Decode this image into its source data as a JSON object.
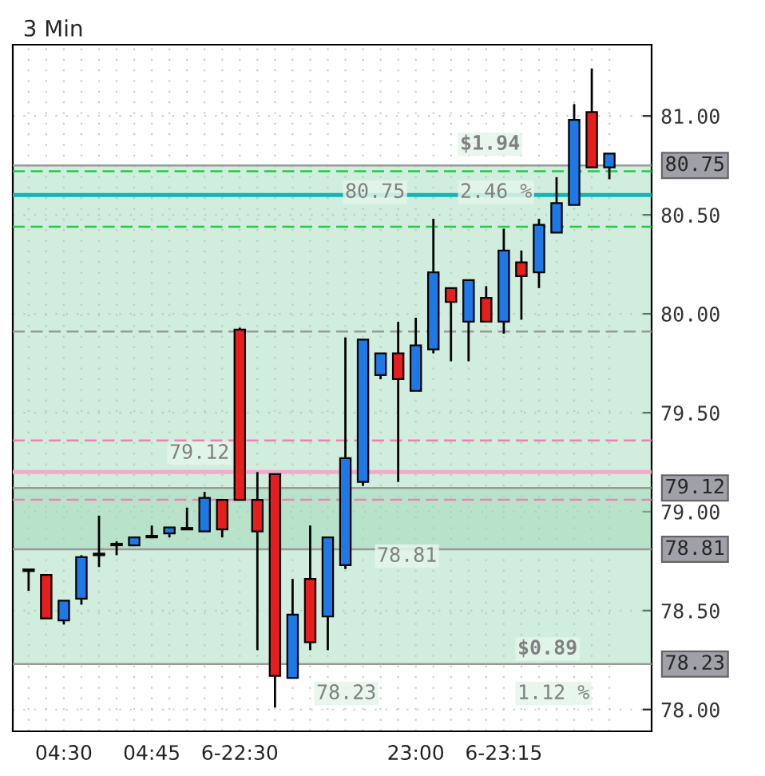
{
  "chart_data": {
    "type": "candlestick",
    "title": "3 Min",
    "categories": [
      null,
      null,
      "04:30",
      null,
      null,
      null,
      null,
      "04:45",
      null,
      null,
      null,
      null,
      "6-22:30",
      null,
      null,
      null,
      null,
      null,
      null,
      null,
      null,
      null,
      "23:00",
      null,
      null,
      null,
      null,
      "6-23:15",
      null,
      null,
      null,
      null,
      null,
      null
    ],
    "ohlc": [
      [
        78.7,
        78.7,
        78.6,
        78.7
      ],
      [
        78.68,
        78.68,
        78.46,
        78.46
      ],
      [
        78.45,
        78.55,
        78.43,
        78.55
      ],
      [
        78.56,
        78.78,
        78.53,
        78.77
      ],
      [
        78.78,
        78.98,
        78.72,
        78.78
      ],
      [
        78.83,
        78.85,
        78.78,
        78.83
      ],
      [
        78.83,
        78.87,
        78.83,
        78.87
      ],
      [
        78.87,
        78.93,
        78.87,
        78.87
      ],
      [
        78.89,
        78.92,
        78.87,
        78.92
      ],
      [
        78.91,
        79.02,
        78.91,
        78.91
      ],
      [
        78.9,
        79.1,
        78.9,
        79.07
      ],
      [
        79.06,
        79.06,
        78.87,
        78.91
      ],
      [
        79.92,
        79.93,
        79.06,
        79.06
      ],
      [
        79.06,
        79.2,
        78.3,
        78.9
      ],
      [
        79.19,
        79.19,
        78.01,
        78.17
      ],
      [
        78.16,
        78.66,
        78.16,
        78.48
      ],
      [
        78.66,
        78.93,
        78.3,
        78.34
      ],
      [
        78.47,
        78.87,
        78.3,
        78.87
      ],
      [
        78.73,
        79.88,
        78.71,
        79.27
      ],
      [
        79.15,
        79.87,
        79.13,
        79.87
      ],
      [
        79.69,
        79.8,
        79.67,
        79.8
      ],
      [
        79.8,
        79.96,
        79.15,
        79.67
      ],
      [
        79.61,
        79.98,
        79.61,
        79.84
      ],
      [
        79.82,
        80.48,
        79.8,
        80.21
      ],
      [
        80.13,
        80.13,
        79.76,
        80.06
      ],
      [
        79.96,
        80.17,
        79.76,
        80.17
      ],
      [
        80.08,
        80.14,
        79.96,
        79.96
      ],
      [
        79.96,
        80.43,
        79.9,
        80.32
      ],
      [
        80.26,
        80.32,
        79.97,
        80.19
      ],
      [
        80.21,
        80.48,
        80.13,
        80.45
      ],
      [
        80.41,
        80.69,
        80.41,
        80.56
      ],
      [
        80.55,
        81.06,
        80.55,
        80.98
      ],
      [
        81.02,
        81.24,
        80.74,
        80.74
      ],
      [
        80.74,
        80.81,
        80.68,
        80.81
      ]
    ],
    "colors": [
      "#1e78e6",
      "#e61e1e",
      "#1e78e6",
      "#1e78e6",
      "#1e78e6",
      "#1e78e6",
      "#1e78e6",
      "#1e78e6",
      "#1e78e6",
      "#e61e1e",
      "#1e78e6",
      "#e61e1e",
      "#e61e1e",
      "#e61e1e",
      "#e61e1e",
      "#1e78e6",
      "#e61e1e",
      "#1e78e6",
      "#1e78e6",
      "#1e78e6",
      "#1e78e6",
      "#e61e1e",
      "#1e78e6",
      "#1e78e6",
      "#e61e1e",
      "#1e78e6",
      "#e61e1e",
      "#1e78e6",
      "#e61e1e",
      "#1e78e6",
      "#1e78e6",
      "#1e78e6",
      "#e61e1e",
      "#1e78e6"
    ],
    "ylim": [
      77.89,
      81.36
    ],
    "yticks": [
      {
        "value": 78.0,
        "label": "78.00"
      },
      {
        "value": 78.5,
        "label": "78.50"
      },
      {
        "value": 79.0,
        "label": "79.00"
      },
      {
        "value": 79.5,
        "label": "79.50"
      },
      {
        "value": 80.0,
        "label": "80.00"
      },
      {
        "value": 80.5,
        "label": "80.50"
      },
      {
        "value": 81.0,
        "label": "81.00"
      }
    ],
    "grid": true,
    "ref_lines": [
      {
        "axis": "y",
        "value": 80.72,
        "color": "#22cc44",
        "line_style": "dashed"
      },
      {
        "axis": "y",
        "value": 80.44,
        "color": "#22cc44",
        "line_style": "dashed"
      },
      {
        "axis": "y",
        "value": 80.6,
        "color": "#11b5b5",
        "line_style": "solid"
      },
      {
        "axis": "y",
        "value": 79.91,
        "color": "#999999",
        "line_style": "dashed"
      },
      {
        "axis": "y",
        "value": 79.36,
        "color": "#f080b8",
        "line_style": "dashed"
      },
      {
        "axis": "y",
        "value": 79.2,
        "color": "#f4a8cc",
        "line_style": "solid"
      },
      {
        "axis": "y",
        "value": 79.06,
        "color": "#f080b8",
        "line_style": "dashed"
      },
      {
        "axis": "y",
        "value": 80.75,
        "label": "80.75",
        "color": "#999999",
        "line_style": "solid"
      },
      {
        "axis": "y",
        "value": 79.12,
        "label": "79.12",
        "color": "#999999",
        "line_style": "solid"
      },
      {
        "axis": "y",
        "value": 78.81,
        "label": "78.81",
        "color": "#999999",
        "line_style": "solid"
      },
      {
        "axis": "y",
        "value": 78.23,
        "label": "78.23",
        "color": "#999999",
        "line_style": "solid"
      }
    ],
    "bands": [
      {
        "axis": "y",
        "from": 78.81,
        "to": 80.75,
        "color": "#9ad8b4"
      },
      {
        "axis": "y",
        "from": 78.23,
        "to": 79.12,
        "color": "#9ad8b4"
      }
    ],
    "annotations": [
      "$1.94",
      "80.75",
      "2.46 %",
      "78.81",
      "79.12",
      "78.23",
      "$0.89",
      "1.12 %"
    ]
  }
}
